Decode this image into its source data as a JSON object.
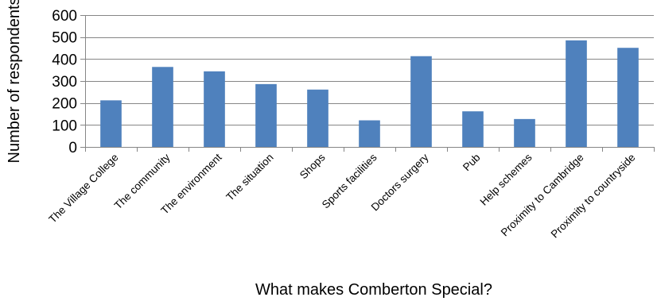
{
  "chart_data": {
    "type": "bar",
    "title": "",
    "xlabel": "What makes Comberton Special?",
    "ylabel": "Number of respondents",
    "ylim": [
      0,
      600
    ],
    "yticks": [
      0,
      100,
      200,
      300,
      400,
      500,
      600
    ],
    "grid": true,
    "legend": "none",
    "bar_color": "#4f81bd",
    "categories": [
      "The Village College",
      "The community",
      "The environment",
      "The situation",
      "Shops",
      "Sports facilities",
      "Doctors surgery",
      "Pub",
      "Help schemes",
      "Proximity to Cambridge",
      "Proximity to countryside"
    ],
    "values": [
      212,
      364,
      344,
      286,
      261,
      121,
      413,
      162,
      127,
      485,
      451
    ]
  }
}
